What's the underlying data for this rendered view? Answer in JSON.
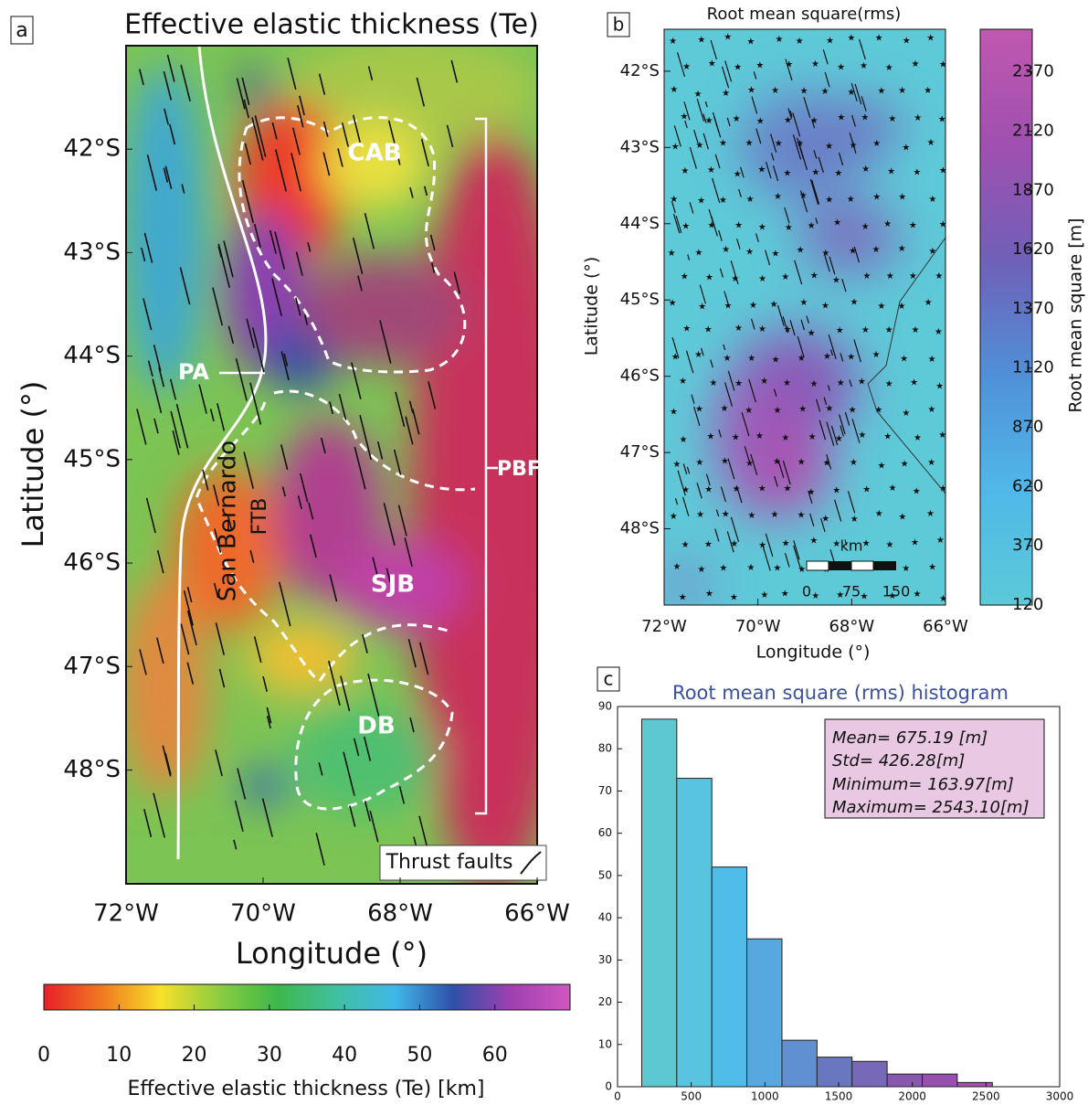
{
  "chart_data": [
    {
      "type": "map",
      "panel": "a",
      "title": "Effective elastic thickness (Te)",
      "xlabel": "Longitude (°)",
      "ylabel": "Latitude (°)",
      "xlim": [
        -72,
        -66
      ],
      "ylim": [
        -49.1,
        -41
      ],
      "xticks": [
        {
          "value": -72,
          "label": "72°W"
        },
        {
          "value": -70,
          "label": "70°W"
        },
        {
          "value": -68,
          "label": "68°W"
        },
        {
          "value": -66,
          "label": "66°W"
        }
      ],
      "yticks": [
        {
          "value": -42,
          "label": "42°S"
        },
        {
          "value": -43,
          "label": "43°S"
        },
        {
          "value": -44,
          "label": "44°S"
        },
        {
          "value": -45,
          "label": "45°S"
        },
        {
          "value": -46,
          "label": "46°S"
        },
        {
          "value": -47,
          "label": "47°S"
        },
        {
          "value": -48,
          "label": "48°S"
        }
      ],
      "annotations": [
        "CAB",
        "PA",
        "San Bernardo",
        "FTB",
        "SJB",
        "DB",
        "PBF",
        "Thrust faults"
      ],
      "colorbar": {
        "label": "Effective elastic thickness (Te) [km]",
        "lim": [
          0,
          70
        ],
        "ticks": [
          0,
          10,
          20,
          30,
          40,
          50,
          60
        ],
        "colormap": [
          "#e8202a",
          "#f07a20",
          "#f7e02a",
          "#8ccc40",
          "#3cb84a",
          "#40c0a0",
          "#40b8e8",
          "#3050a8",
          "#a040b0",
          "#d058c0"
        ]
      }
    },
    {
      "type": "map",
      "panel": "b",
      "title": "Root mean square(rms)",
      "xlabel": "Longitude (°)",
      "ylabel": "Latitude (°)",
      "xlim": [
        -72,
        -66
      ],
      "ylim": [
        -49,
        -41.45
      ],
      "xticks": [
        {
          "value": -72,
          "label": "72°W"
        },
        {
          "value": -70,
          "label": "70°W"
        },
        {
          "value": -68,
          "label": "68°W"
        },
        {
          "value": -66,
          "label": "66°W"
        }
      ],
      "yticks": [
        {
          "value": -42,
          "label": "42°S"
        },
        {
          "value": -43,
          "label": "43°S"
        },
        {
          "value": -44,
          "label": "44°S"
        },
        {
          "value": -45,
          "label": "45°S"
        },
        {
          "value": -46,
          "label": "46°S"
        },
        {
          "value": -47,
          "label": "47°S"
        },
        {
          "value": -48,
          "label": "48°S"
        }
      ],
      "scale_bar": {
        "unit": "km",
        "ticks": [
          0,
          75,
          150
        ]
      },
      "colorbar": {
        "label": "Root mean square [m]",
        "lim": [
          120,
          2550
        ],
        "ticks": [
          120,
          370,
          620,
          870,
          1120,
          1370,
          1620,
          1870,
          2120,
          2370
        ],
        "colormap": [
          "#5ccad8",
          "#50b8e8",
          "#5090d8",
          "#7060b8",
          "#a050b0",
          "#c058b0"
        ]
      }
    },
    {
      "type": "histogram",
      "panel": "c",
      "title": "Root mean square (rms) histogram",
      "bins": [
        163.97,
        401.88,
        639.79,
        877.7,
        1115.61,
        1353.53,
        1591.44,
        1829.35,
        2067.26,
        2305.18,
        2543.1
      ],
      "values": [
        87,
        73,
        52,
        35,
        11,
        7,
        6,
        3,
        3,
        1
      ],
      "colors": [
        "#5ec8d0",
        "#58c4e0",
        "#50bce8",
        "#58a8e0",
        "#6090d0",
        "#6878c0",
        "#7868b8",
        "#8858b0",
        "#9850b0",
        "#a850b0"
      ],
      "xlim": [
        0,
        3000
      ],
      "xticks": [
        0,
        500,
        1000,
        1500,
        2000,
        2500,
        3000
      ],
      "ylim": [
        0,
        90
      ],
      "yticks": [
        0,
        10,
        20,
        30,
        40,
        50,
        60,
        70,
        80,
        90
      ],
      "stats": [
        "Mean= 675.19 [m]",
        "Std= 426.28[m]",
        "Minimum= 163.97[m]",
        "Maximum= 2543.10[m]"
      ]
    }
  ]
}
